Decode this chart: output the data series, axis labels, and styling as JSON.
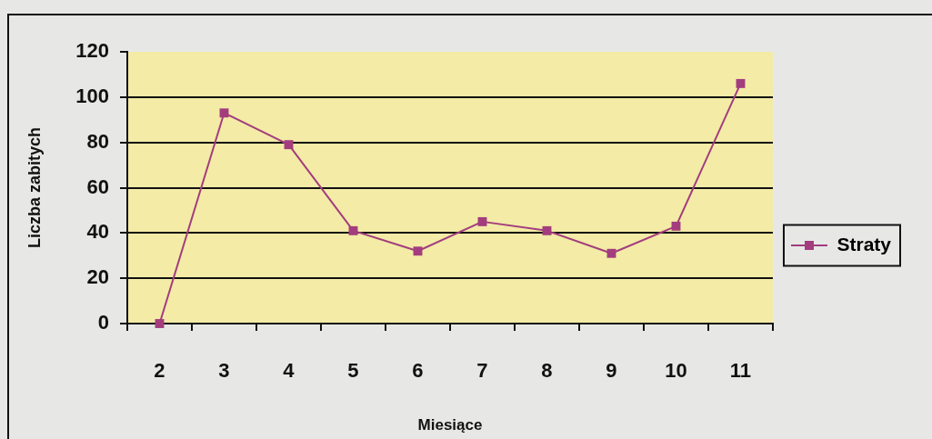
{
  "chart_data": {
    "type": "line",
    "xlabel": "Miesiące",
    "ylabel": "Liczba zabitych",
    "categories": [
      "2",
      "3",
      "4",
      "5",
      "6",
      "7",
      "8",
      "9",
      "10",
      "11"
    ],
    "series": [
      {
        "name": "Straty",
        "color": "#a33d7e",
        "values": [
          0,
          93,
          79,
          41,
          32,
          45,
          41,
          31,
          43,
          106
        ]
      }
    ],
    "ylim": [
      0,
      120
    ],
    "yticks": [
      0,
      20,
      40,
      60,
      80,
      100,
      120
    ],
    "grid": "y",
    "legend": "right",
    "marker": "square",
    "line_style": "solid"
  }
}
